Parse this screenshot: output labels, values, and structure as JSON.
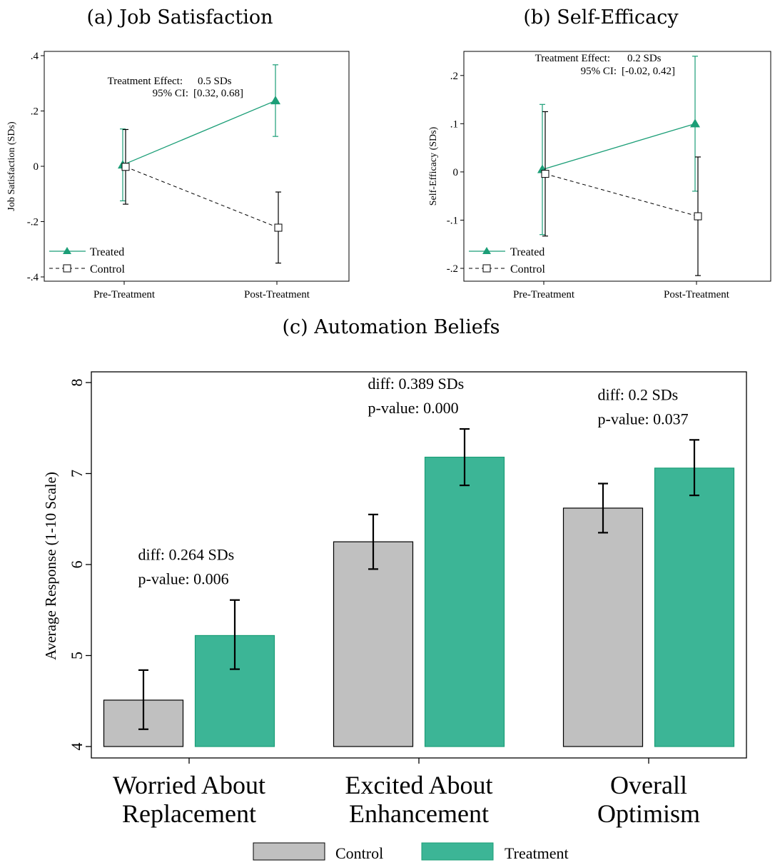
{
  "chart_data": [
    {
      "type": "line",
      "caption": "(a) Job Satisfaction",
      "ylabel": "Job Satisfaction (SDs)",
      "x": [
        "Pre-Treatment",
        "Post-Treatment"
      ],
      "ylim": [
        -0.4,
        0.4
      ],
      "yticks": [
        0.4,
        0.2,
        0,
        -0.2,
        -0.4
      ],
      "ytick_labels": [
        ".4",
        ".2",
        "0",
        "-.2",
        "-.4"
      ],
      "grid": false,
      "legend_position": "bottom-left",
      "series": [
        {
          "name": "Treated",
          "color": "#1b9e77",
          "marker": "filled-triangle",
          "line": "solid",
          "values": [
            0.005,
            0.237
          ],
          "ci_low": [
            -0.125,
            0.108
          ],
          "ci_high": [
            0.135,
            0.367
          ]
        },
        {
          "name": "Control",
          "color": "#000000",
          "marker": "hollow-square",
          "line": "dashed",
          "values": [
            -0.002,
            -0.222
          ],
          "ci_low": [
            -0.137,
            -0.35
          ],
          "ci_high": [
            0.133,
            -0.093
          ]
        }
      ],
      "annotation": {
        "label_effect": "Treatment Effect:",
        "effect_value": "0.5 SDs",
        "label_ci": "95% CI:",
        "ci_value": "[0.32, 0.68]"
      }
    },
    {
      "type": "line",
      "caption": "(b) Self-Efficacy",
      "ylabel": "Self-Efficacy (SDs)",
      "x": [
        "Pre-Treatment",
        "Post-Treatment"
      ],
      "ylim": [
        -0.2,
        0.25
      ],
      "yticks": [
        0.2,
        0.1,
        0,
        -0.1,
        -0.2
      ],
      "ytick_labels": [
        ".2",
        ".1",
        "0",
        "-.1",
        "-.2"
      ],
      "grid": false,
      "legend_position": "bottom-left",
      "series": [
        {
          "name": "Treated",
          "color": "#1b9e77",
          "marker": "filled-triangle",
          "line": "solid",
          "values": [
            0.005,
            0.1
          ],
          "ci_low": [
            -0.13,
            -0.04
          ],
          "ci_high": [
            0.14,
            0.24
          ]
        },
        {
          "name": "Control",
          "color": "#000000",
          "marker": "hollow-square",
          "line": "dashed",
          "values": [
            -0.004,
            -0.092
          ],
          "ci_low": [
            -0.133,
            -0.215
          ],
          "ci_high": [
            0.125,
            0.031
          ]
        }
      ],
      "annotation": {
        "label_effect": "Treatment Effect:",
        "effect_value": "0.2 SDs",
        "label_ci": "95% CI:",
        "ci_value": "[-0.02, 0.42]"
      }
    },
    {
      "type": "bar",
      "caption": "(c) Automation Beliefs",
      "ylabel": "Average Response (1-10 Scale)",
      "categories": [
        [
          "Worried About",
          "Replacement"
        ],
        [
          "Excited About",
          "Enhancement"
        ],
        [
          "Overall",
          "Optimism"
        ]
      ],
      "ylim": [
        4,
        8
      ],
      "yticks": [
        4,
        5,
        6,
        7,
        8
      ],
      "ytick_labels": [
        "4",
        "5",
        "6",
        "7",
        "8"
      ],
      "grid": false,
      "legend_position": "bottom-center",
      "series": [
        {
          "name": "Control",
          "color": "#c0c0c0",
          "edge": "#000000",
          "values": [
            4.51,
            6.25,
            6.62
          ],
          "ci_low": [
            4.19,
            5.95,
            6.35
          ],
          "ci_high": [
            4.84,
            6.55,
            6.89
          ]
        },
        {
          "name": "Treatment",
          "color": "#3cb596",
          "edge": "#1b9e77",
          "values": [
            5.22,
            7.18,
            7.06
          ],
          "ci_low": [
            4.85,
            6.87,
            6.76
          ],
          "ci_high": [
            5.61,
            7.49,
            7.37
          ]
        }
      ],
      "annotations": [
        {
          "diff": "diff: 0.264 SDs",
          "pvalue": "p-value: 0.006"
        },
        {
          "diff": "diff: 0.389 SDs",
          "pvalue": "p-value: 0.000"
        },
        {
          "diff": "diff: 0.2 SDs",
          "pvalue": "p-value: 0.037"
        }
      ]
    }
  ]
}
